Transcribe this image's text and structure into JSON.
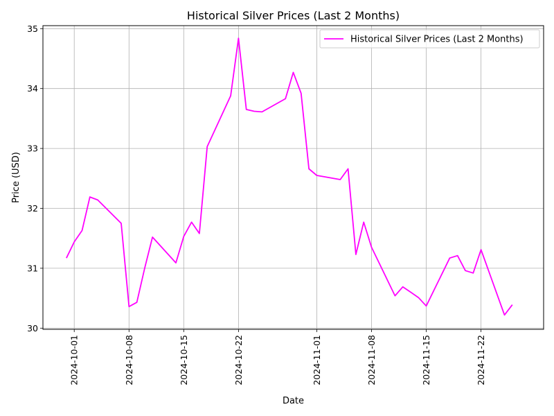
{
  "chart_data": {
    "type": "line",
    "title": "Historical Silver Prices (Last 2 Months)",
    "xlabel": "Date",
    "ylabel": "Price (USD)",
    "grid": true,
    "legend_position": "top-right",
    "line_color": "#ff00ff",
    "xlim": [
      "2024-09-27",
      "2024-11-30"
    ],
    "ylim": [
      29.98,
      35.05
    ],
    "x_ticks": [
      "2024-10-01",
      "2024-10-08",
      "2024-10-15",
      "2024-10-22",
      "2024-11-01",
      "2024-11-08",
      "2024-11-15",
      "2024-11-22"
    ],
    "y_ticks": [
      30,
      31,
      32,
      33,
      34,
      35
    ],
    "series": [
      {
        "name": "Historical Silver Prices (Last 2 Months)",
        "x": [
          "2024-09-30",
          "2024-10-01",
          "2024-10-02",
          "2024-10-03",
          "2024-10-04",
          "2024-10-07",
          "2024-10-08",
          "2024-10-09",
          "2024-10-10",
          "2024-10-11",
          "2024-10-14",
          "2024-10-15",
          "2024-10-16",
          "2024-10-17",
          "2024-10-18",
          "2024-10-21",
          "2024-10-22",
          "2024-10-23",
          "2024-10-24",
          "2024-10-25",
          "2024-10-28",
          "2024-10-29",
          "2024-10-30",
          "2024-10-31",
          "2024-11-01",
          "2024-11-04",
          "2024-11-05",
          "2024-11-06",
          "2024-11-07",
          "2024-11-08",
          "2024-11-11",
          "2024-11-12",
          "2024-11-13",
          "2024-11-14",
          "2024-11-15",
          "2024-11-18",
          "2024-11-19",
          "2024-11-20",
          "2024-11-21",
          "2024-11-22",
          "2024-11-25",
          "2024-11-26"
        ],
        "values": [
          31.17,
          31.44,
          31.63,
          32.19,
          32.14,
          31.75,
          30.36,
          30.43,
          31.0,
          31.52,
          31.09,
          31.53,
          31.77,
          31.58,
          33.03,
          33.88,
          34.84,
          33.65,
          33.62,
          33.61,
          33.83,
          34.27,
          33.92,
          32.66,
          32.55,
          32.48,
          32.66,
          31.23,
          31.77,
          31.35,
          30.54,
          30.69,
          30.6,
          30.51,
          30.37,
          31.17,
          31.21,
          30.96,
          30.92,
          31.31,
          30.22,
          30.39
        ]
      }
    ]
  }
}
